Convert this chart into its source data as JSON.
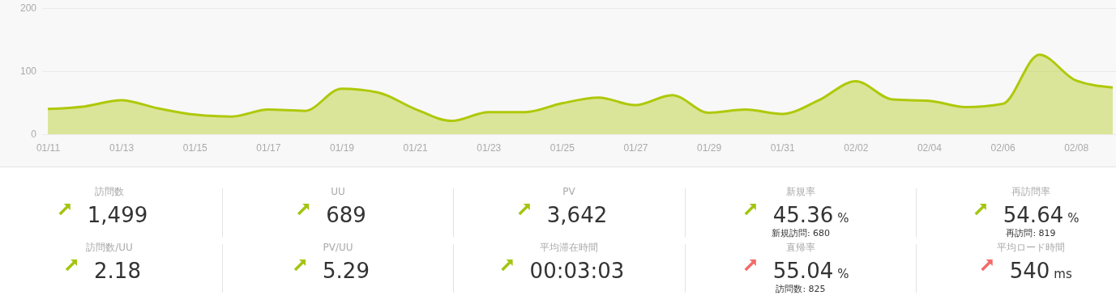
{
  "chart_data": [
    {
      "type": "area",
      "categories": [
        "01/11",
        null,
        "01/13",
        null,
        "01/15",
        null,
        "01/17",
        null,
        "01/19",
        null,
        "01/21",
        null,
        "01/23",
        null,
        "01/25",
        null,
        "01/27",
        null,
        "01/29",
        null,
        "01/31",
        null,
        "02/02",
        null,
        "02/04",
        null,
        "02/06",
        null,
        "02/08",
        null
      ],
      "series": [
        {
          "color": "#afc80a",
          "values": [
            40,
            44,
            54,
            41,
            31,
            28,
            39,
            37,
            72,
            66,
            40,
            21,
            35,
            35,
            49,
            58,
            46,
            62,
            34,
            39,
            32,
            54,
            84,
            55,
            53,
            43,
            48,
            126,
            85,
            74
          ]
        }
      ],
      "ylim": [
        0,
        200
      ],
      "yticks": [
        0,
        100,
        200
      ],
      "grid": "y"
    },
    {
      "type": "other",
      "annotations": [
        "訪問数",
        "1,499",
        "UU",
        "689",
        "PV",
        "3,642",
        "新規率",
        "45.36",
        "%",
        "新規訪問: 680",
        "再訪問率",
        "54.64",
        "%",
        "再訪問: 819",
        "訪問数/UU",
        "2.18",
        "PV/UU",
        "5.29",
        "平均滞在時間",
        "00:03:03",
        "直帰率",
        "55.04",
        "%",
        "訪問数: 825",
        "平均ロード時間",
        "540",
        "ms"
      ]
    }
  ]
}
